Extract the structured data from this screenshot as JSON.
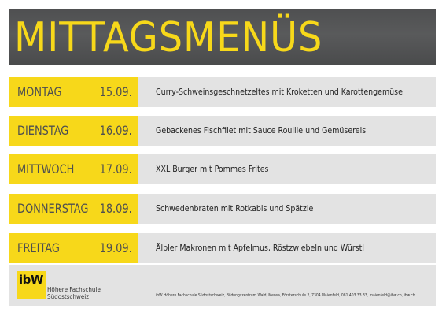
{
  "header": {
    "title": "MITTAGSMENÜS"
  },
  "menu": [
    {
      "day": "MONTAG",
      "date": "15.09.",
      "dish": "Curry-Schweinsgeschnetzeltes mit Kroketten und Karottengemüse"
    },
    {
      "day": "DIENSTAG",
      "date": "16.09.",
      "dish": "Gebackenes Fischfilet mit Sauce Rouille und Gemüsereis"
    },
    {
      "day": "MITTWOCH",
      "date": "17.09.",
      "dish": "XXL Burger mit Pommes Frites"
    },
    {
      "day": "DONNERSTAG",
      "date": "18.09.",
      "dish": "Schwedenbraten mit Rotkabis und Spätzle"
    },
    {
      "day": "FREITAG",
      "date": "19.09.",
      "dish": "Älpler Makronen mit Apfelmus, Röstzwiebeln und Würstl"
    }
  ],
  "footer": {
    "logo_text": "ibW",
    "logo_name": "Höhere Fachschule\nSüdostschweiz",
    "contact": "ibW Höhere Fachschule Südostschweiz, Bildungszentrum Wald, Mensa, Försterschule 2, 7304 Maienfeld, 081 403 33 33, maienfeld@ibw.ch, ibw.ch"
  },
  "colors": {
    "accent": "#f7d81a",
    "header_bg": "#545556",
    "row_bg": "#e3e3e3",
    "text_dark": "#4e4f50"
  }
}
